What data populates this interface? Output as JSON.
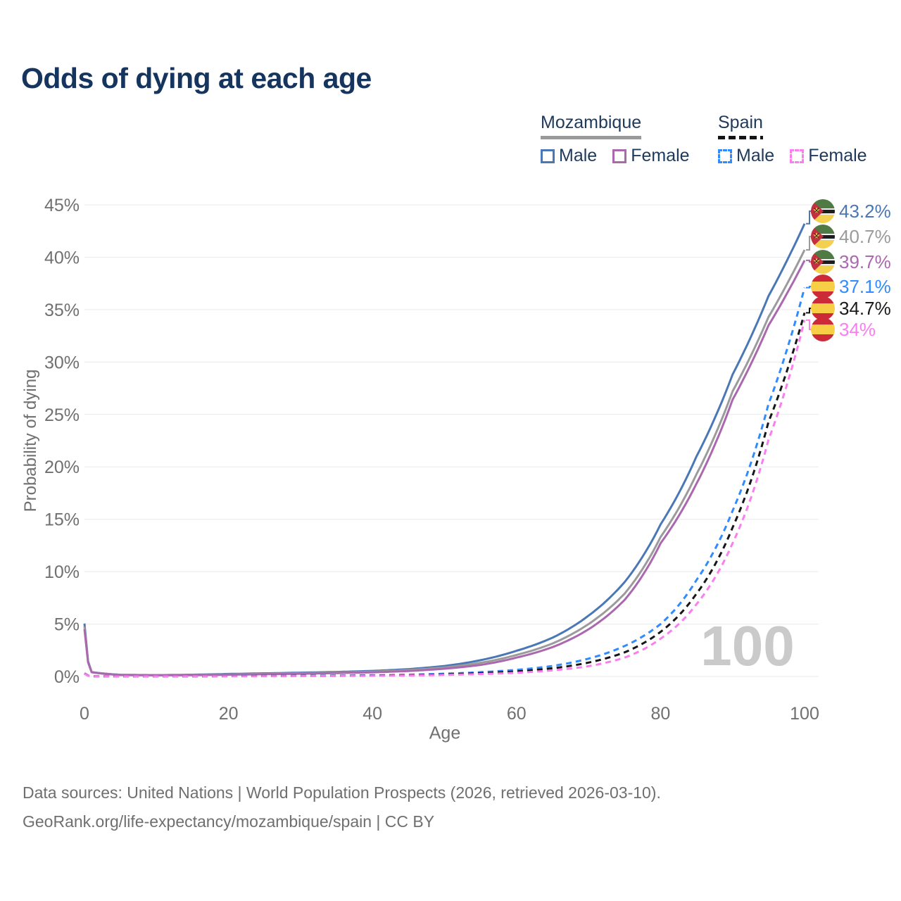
{
  "header": {
    "title": "Odds of dying at each age"
  },
  "legend": {
    "groups": [
      {
        "name": "Mozambique",
        "line_style": "solid",
        "underline_color": "#9a9a9a",
        "items": [
          {
            "label": "Male",
            "color": "#4a77b5"
          },
          {
            "label": "Female",
            "color": "#aa68ae"
          }
        ]
      },
      {
        "name": "Spain",
        "line_style": "dashed",
        "underline_color": "#141414",
        "items": [
          {
            "label": "Male",
            "color": "#2f8bff"
          },
          {
            "label": "Female",
            "color": "#fb7df0"
          }
        ]
      }
    ]
  },
  "chart_data": {
    "type": "line",
    "title": "Odds of dying at each age",
    "xlabel": "Age",
    "ylabel": "Probability of dying",
    "xlim": [
      0,
      100
    ],
    "ylim": [
      0,
      45
    ],
    "grid": true,
    "legend_position": "top-right",
    "watermark": "100",
    "x_tick_labels": [
      "0",
      "20",
      "40",
      "60",
      "80",
      "100"
    ],
    "y_tick_labels": [
      "0%",
      "5%",
      "10%",
      "15%",
      "20%",
      "25%",
      "30%",
      "35%",
      "40%",
      "45%"
    ],
    "y_unit": "percent",
    "series": [
      {
        "name": "Mozambique Male",
        "country": "Mozambique",
        "sex": "Male",
        "color": "#4a77b5",
        "dash": false,
        "end_label": "43.2%",
        "points": [
          [
            0,
            5.05
          ],
          [
            1,
            0.42
          ],
          [
            5,
            0.16
          ],
          [
            10,
            0.13
          ],
          [
            15,
            0.17
          ],
          [
            20,
            0.24
          ],
          [
            25,
            0.3
          ],
          [
            30,
            0.36
          ],
          [
            35,
            0.43
          ],
          [
            40,
            0.53
          ],
          [
            45,
            0.7
          ],
          [
            50,
            1.0
          ],
          [
            55,
            1.55
          ],
          [
            60,
            2.45
          ],
          [
            65,
            3.7
          ],
          [
            70,
            5.8
          ],
          [
            75,
            9.0
          ],
          [
            80,
            14.5
          ],
          [
            85,
            21.0
          ],
          [
            90,
            28.8
          ],
          [
            95,
            36.3
          ],
          [
            100,
            43.2
          ]
        ]
      },
      {
        "name": "Mozambique Both sexes",
        "country": "Mozambique",
        "sex": "Both",
        "color": "#9b9b9b",
        "dash": false,
        "end_label": "40.7%",
        "points": [
          [
            0,
            4.75
          ],
          [
            1,
            0.41
          ],
          [
            5,
            0.15
          ],
          [
            10,
            0.12
          ],
          [
            15,
            0.15
          ],
          [
            20,
            0.2
          ],
          [
            25,
            0.25
          ],
          [
            30,
            0.31
          ],
          [
            35,
            0.37
          ],
          [
            40,
            0.46
          ],
          [
            45,
            0.61
          ],
          [
            50,
            0.86
          ],
          [
            55,
            1.3
          ],
          [
            60,
            2.05
          ],
          [
            65,
            3.15
          ],
          [
            70,
            5.0
          ],
          [
            75,
            7.9
          ],
          [
            80,
            13.3
          ],
          [
            85,
            19.3
          ],
          [
            90,
            27.2
          ],
          [
            95,
            34.3
          ],
          [
            100,
            40.7
          ]
        ]
      },
      {
        "name": "Mozambique Female",
        "country": "Mozambique",
        "sex": "Female",
        "color": "#aa68ae",
        "dash": false,
        "end_label": "39.7%",
        "points": [
          [
            0,
            4.5
          ],
          [
            1,
            0.4
          ],
          [
            5,
            0.14
          ],
          [
            10,
            0.11
          ],
          [
            15,
            0.13
          ],
          [
            20,
            0.17
          ],
          [
            25,
            0.21
          ],
          [
            30,
            0.26
          ],
          [
            35,
            0.32
          ],
          [
            40,
            0.39
          ],
          [
            45,
            0.52
          ],
          [
            50,
            0.74
          ],
          [
            55,
            1.1
          ],
          [
            60,
            1.8
          ],
          [
            65,
            2.8
          ],
          [
            70,
            4.5
          ],
          [
            75,
            7.3
          ],
          [
            80,
            12.7
          ],
          [
            85,
            18.4
          ],
          [
            90,
            26.4
          ],
          [
            95,
            33.5
          ],
          [
            100,
            39.7
          ]
        ]
      },
      {
        "name": "Spain Male",
        "country": "Spain",
        "sex": "Male",
        "color": "#2f8bff",
        "dash": true,
        "end_label": "37.1%",
        "points": [
          [
            0,
            0.3
          ],
          [
            1,
            0.02
          ],
          [
            5,
            0.01
          ],
          [
            10,
            0.009
          ],
          [
            15,
            0.02
          ],
          [
            20,
            0.04
          ],
          [
            25,
            0.05
          ],
          [
            30,
            0.06
          ],
          [
            35,
            0.08
          ],
          [
            40,
            0.11
          ],
          [
            45,
            0.16
          ],
          [
            50,
            0.26
          ],
          [
            55,
            0.41
          ],
          [
            60,
            0.63
          ],
          [
            65,
            1.0
          ],
          [
            70,
            1.7
          ],
          [
            75,
            2.9
          ],
          [
            80,
            5.0
          ],
          [
            85,
            9.2
          ],
          [
            90,
            15.8
          ],
          [
            95,
            26.0
          ],
          [
            100,
            37.1
          ]
        ]
      },
      {
        "name": "Spain Both sexes",
        "country": "Spain",
        "sex": "Both",
        "color": "#161616",
        "dash": true,
        "end_label": "34.7%",
        "points": [
          [
            0,
            0.28
          ],
          [
            1,
            0.019
          ],
          [
            5,
            0.009
          ],
          [
            10,
            0.008
          ],
          [
            15,
            0.016
          ],
          [
            20,
            0.03
          ],
          [
            25,
            0.04
          ],
          [
            30,
            0.045
          ],
          [
            35,
            0.06
          ],
          [
            40,
            0.085
          ],
          [
            45,
            0.12
          ],
          [
            50,
            0.2
          ],
          [
            55,
            0.31
          ],
          [
            60,
            0.48
          ],
          [
            65,
            0.78
          ],
          [
            70,
            1.32
          ],
          [
            75,
            2.3
          ],
          [
            80,
            4.25
          ],
          [
            85,
            7.9
          ],
          [
            90,
            14.2
          ],
          [
            95,
            24.3
          ],
          [
            100,
            34.7
          ]
        ]
      },
      {
        "name": "Spain Female",
        "country": "Spain",
        "sex": "Female",
        "color": "#fb7df0",
        "dash": true,
        "end_label": "34%",
        "points": [
          [
            0,
            0.26
          ],
          [
            1,
            0.018
          ],
          [
            5,
            0.008
          ],
          [
            10,
            0.007
          ],
          [
            15,
            0.012
          ],
          [
            20,
            0.018
          ],
          [
            25,
            0.025
          ],
          [
            30,
            0.032
          ],
          [
            35,
            0.045
          ],
          [
            40,
            0.062
          ],
          [
            45,
            0.09
          ],
          [
            50,
            0.15
          ],
          [
            55,
            0.23
          ],
          [
            60,
            0.35
          ],
          [
            65,
            0.58
          ],
          [
            70,
            0.98
          ],
          [
            75,
            1.8
          ],
          [
            80,
            3.6
          ],
          [
            85,
            6.9
          ],
          [
            90,
            12.7
          ],
          [
            95,
            22.6
          ],
          [
            100,
            34.0
          ]
        ]
      }
    ]
  },
  "end_labels": [
    {
      "value": "43.2%",
      "flag": "mozambique",
      "color": "#4a77b5"
    },
    {
      "value": "40.7%",
      "flag": "mozambique",
      "color": "#9b9b9b"
    },
    {
      "value": "39.7%",
      "flag": "mozambique",
      "color": "#aa68ae"
    },
    {
      "value": "37.1%",
      "flag": "spain",
      "color": "#2f8bff"
    },
    {
      "value": "34.7%",
      "flag": "spain",
      "color": "#1a1a1a"
    },
    {
      "value": "34%",
      "flag": "spain",
      "color": "#fb7df0"
    }
  ],
  "footer": {
    "line1": "Data sources: United Nations | World Population Prospects (2026, retrieved 2026-03-10).",
    "line2": "GeoRank.org/life-expectancy/mozambique/spain | CC BY"
  }
}
